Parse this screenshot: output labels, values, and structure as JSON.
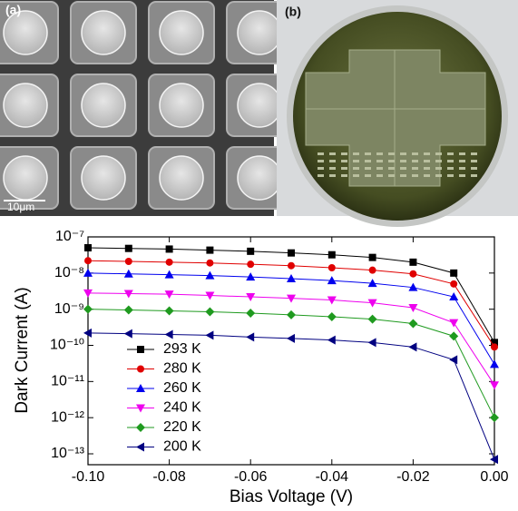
{
  "panels": {
    "a": {
      "label": "(a)",
      "scale_bar": "10μm"
    },
    "b": {
      "label": "(b)"
    }
  },
  "chart_data": {
    "type": "line",
    "y_scale": "log",
    "xlabel": "Bias Voltage (V)",
    "ylabel": "Dark Current (A)",
    "x": [
      -0.1,
      -0.09,
      -0.08,
      -0.07,
      -0.06,
      -0.05,
      -0.04,
      -0.03,
      -0.02,
      -0.01,
      0.0
    ],
    "xlim": [
      -0.1,
      0.0
    ],
    "xticks": [
      {
        "value": -0.1,
        "label": "-0.10"
      },
      {
        "value": -0.08,
        "label": "-0.08"
      },
      {
        "value": -0.06,
        "label": "-0.06"
      },
      {
        "value": -0.04,
        "label": "-0.04"
      },
      {
        "value": -0.02,
        "label": "-0.02"
      },
      {
        "value": 0.0,
        "label": "0.00"
      }
    ],
    "ylim": [
      5e-14,
      1e-07
    ],
    "yticks": [
      {
        "value": 1e-07,
        "label": "10⁻⁷"
      },
      {
        "value": 1e-08,
        "label": "10⁻⁸"
      },
      {
        "value": 1e-09,
        "label": "10⁻⁹"
      },
      {
        "value": 1e-10,
        "label": "10⁻¹⁰"
      },
      {
        "value": 1e-11,
        "label": "10⁻¹¹"
      },
      {
        "value": 1e-12,
        "label": "10⁻¹²"
      },
      {
        "value": 1e-13,
        "label": "10⁻¹³"
      }
    ],
    "series": [
      {
        "name": "293 K",
        "color": "#000000",
        "marker": "square",
        "values": [
          5e-08,
          4.8e-08,
          4.6e-08,
          4.3e-08,
          4e-08,
          3.6e-08,
          3.2e-08,
          2.7e-08,
          2e-08,
          1e-08,
          1.2e-10
        ]
      },
      {
        "name": "280 K",
        "color": "#e00000",
        "marker": "circle",
        "values": [
          2.2e-08,
          2.1e-08,
          2e-08,
          1.9e-08,
          1.75e-08,
          1.6e-08,
          1.4e-08,
          1.2e-08,
          9.5e-09,
          5e-09,
          9e-11
        ]
      },
      {
        "name": "260 K",
        "color": "#0000ee",
        "marker": "triangle-up",
        "values": [
          1e-08,
          9.5e-09,
          9e-09,
          8.5e-09,
          7.8e-09,
          7e-09,
          6.2e-09,
          5.2e-09,
          4e-09,
          2.2e-09,
          3e-11
        ]
      },
      {
        "name": "240 K",
        "color": "#ee00ee",
        "marker": "triangle-down",
        "values": [
          2.8e-09,
          2.7e-09,
          2.6e-09,
          2.4e-09,
          2.2e-09,
          2e-09,
          1.8e-09,
          1.5e-09,
          1.1e-09,
          4.2e-10,
          8e-12
        ]
      },
      {
        "name": "220 K",
        "color": "#1f9a1f",
        "marker": "diamond",
        "values": [
          1e-09,
          9.5e-10,
          9e-10,
          8.5e-10,
          7.8e-10,
          7e-10,
          6.2e-10,
          5.3e-10,
          4e-10,
          1.8e-10,
          1e-12
        ]
      },
      {
        "name": "200 K",
        "color": "#000080",
        "marker": "triangle-left",
        "values": [
          2.2e-10,
          2.1e-10,
          2e-10,
          1.9e-10,
          1.7e-10,
          1.55e-10,
          1.4e-10,
          1.2e-10,
          9e-11,
          4e-11,
          7e-14
        ]
      }
    ],
    "legend": "lower-left"
  }
}
